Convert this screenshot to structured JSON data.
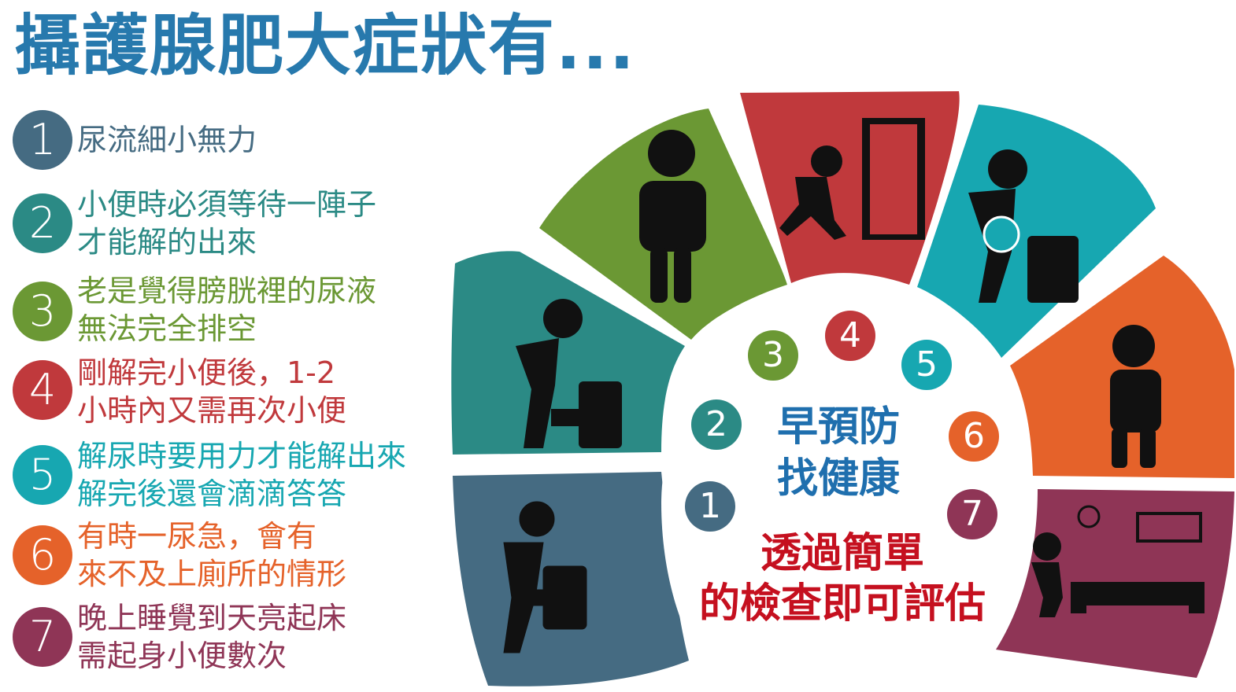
{
  "title": "攝護腺肥大症狀有...",
  "symptoms": [
    {
      "num": "1",
      "lines": [
        "尿流細小無力",
        ""
      ],
      "color": "#456b82"
    },
    {
      "num": "2",
      "lines": [
        "小便時必須等待一陣子",
        "才能解的出來"
      ],
      "color": "#2b8a85"
    },
    {
      "num": "3",
      "lines": [
        "老是覺得膀胱裡的尿液",
        "無法完全排空"
      ],
      "color": "#6b9834"
    },
    {
      "num": "4",
      "lines": [
        "剛解完小便後，1-2",
        "小時內又需再次小便"
      ],
      "color": "#c0393c"
    },
    {
      "num": "5",
      "lines": [
        "解尿時要用力才能解出來",
        "解完後還會滴滴答答"
      ],
      "color": "#17a7b1"
    },
    {
      "num": "6",
      "lines": [
        "有時一尿急，會有",
        "來不及上廁所的情形"
      ],
      "color": "#e5622a"
    },
    {
      "num": "7",
      "lines": [
        "晚上睡覺到天亮起床",
        "需起身小便數次"
      ],
      "color": "#8f3556"
    }
  ],
  "slogan": {
    "line1": "早預防",
    "line2": "找健康",
    "line3": "透過簡單",
    "line4": "的檢查即可評估"
  }
}
